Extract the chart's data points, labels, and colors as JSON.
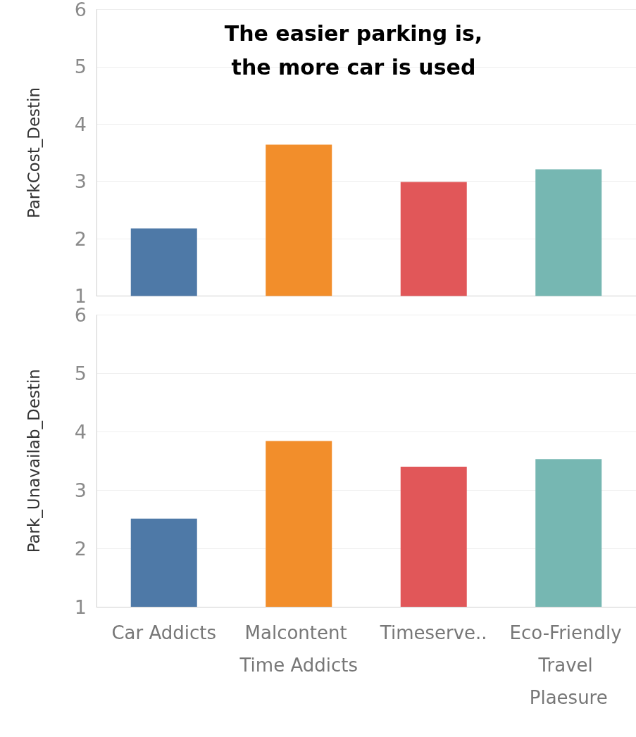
{
  "chart_data": [
    {
      "type": "bar",
      "title": "The easier parking is,\nthe more car is used",
      "ylabel": "ParkCost_Destin",
      "categories": [
        "Car Addicts",
        "Malcontent Time Addicts",
        "Timeserve..",
        "Eco-Friendly Travel Plaesure"
      ],
      "values": [
        2.18,
        3.64,
        2.99,
        3.21
      ],
      "colors": [
        "#4e79a7",
        "#f28e2b",
        "#e15759",
        "#76b7b2"
      ],
      "ylim": [
        1,
        6
      ],
      "yticks": [
        1,
        2,
        3,
        4,
        5,
        6
      ],
      "grid": "y",
      "tick_labels": "y"
    },
    {
      "type": "bar",
      "ylabel": "Park_Unavailab_Destin",
      "categories": [
        "Car Addicts",
        "Malcontent Time Addicts",
        "Timeserve..",
        "Eco-Friendly Travel Plaesure"
      ],
      "values": [
        2.51,
        3.84,
        3.4,
        3.53
      ],
      "colors": [
        "#4e79a7",
        "#f28e2b",
        "#e15759",
        "#76b7b2"
      ],
      "ylim": [
        1,
        6
      ],
      "yticks": [
        1,
        2,
        3,
        4,
        5,
        6
      ],
      "grid": "y"
    }
  ]
}
